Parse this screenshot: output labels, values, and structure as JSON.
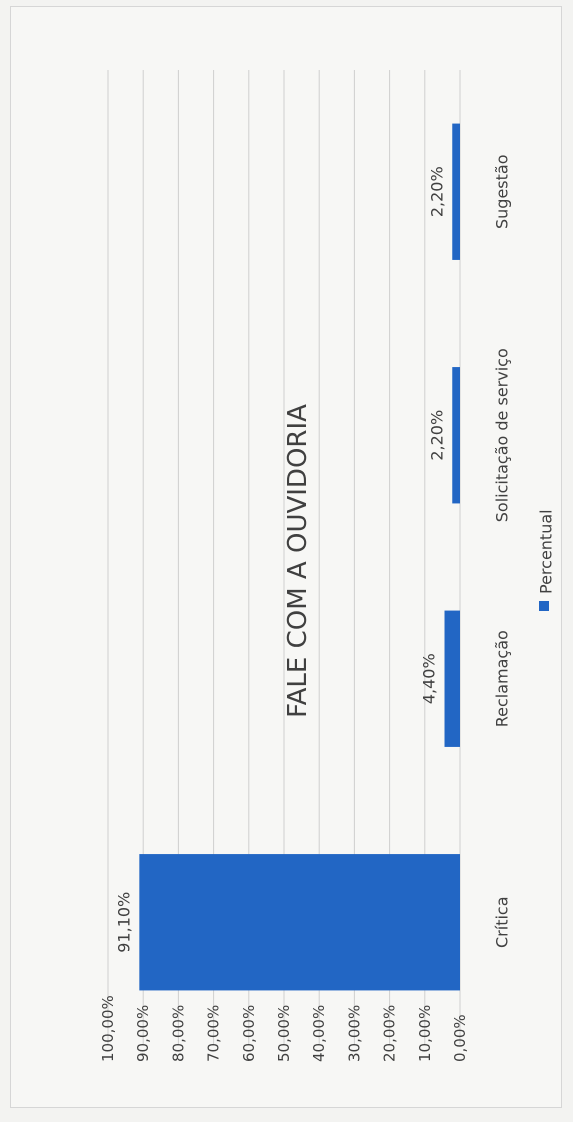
{
  "chart_data": {
    "type": "bar",
    "title": "FALE COM A OUVIDORIA",
    "categories": [
      "Crítica",
      "Reclamação",
      "Solicitação de serviço",
      "Sugestão"
    ],
    "series": [
      {
        "name": "Percentual",
        "values": [
          91.1,
          4.4,
          2.2,
          2.2
        ],
        "labels": [
          "91,10%",
          "4,40%",
          "2,20%",
          "2,20%"
        ]
      }
    ],
    "yticks": [
      "0,00%",
      "10,00%",
      "20,00%",
      "30,00%",
      "40,00%",
      "50,00%",
      "60,00%",
      "70,00%",
      "80,00%",
      "90,00%",
      "100,00%"
    ],
    "ylim": [
      0,
      100
    ],
    "grid": true,
    "legend": "bottom",
    "orientation": "rotated-90-ccw",
    "colors": {
      "bar": "#2266c4",
      "grid": "#cfcfcf",
      "text": "#404040"
    }
  }
}
